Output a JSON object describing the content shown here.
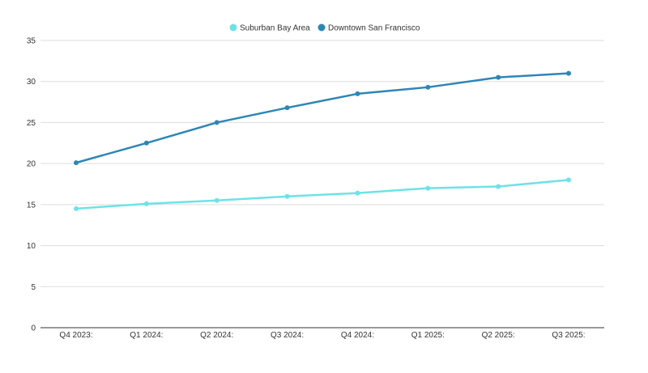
{
  "chart_data": {
    "type": "line",
    "title": "",
    "xlabel": "",
    "ylabel": "",
    "categories": [
      "Q4 2023:",
      "Q1 2024:",
      "Q2 2024:",
      "Q3 2024:",
      "Q4 2024:",
      "Q1 2025:",
      "Q2 2025:",
      "Q3 2025:"
    ],
    "ylim": [
      0,
      35
    ],
    "yticks": [
      0,
      5,
      10,
      15,
      20,
      25,
      30,
      35
    ],
    "grid": true,
    "legend_position": "top-center",
    "series": [
      {
        "name": "Suburban Bay Area",
        "color": "#6ee2e8",
        "values": [
          14.5,
          15.1,
          15.5,
          16.0,
          16.4,
          17.0,
          17.2,
          18.0
        ]
      },
      {
        "name": "Downtown San Francisco",
        "color": "#2e86b5",
        "values": [
          20.1,
          22.5,
          25.0,
          26.8,
          28.5,
          29.3,
          30.5,
          31.0
        ]
      }
    ]
  }
}
